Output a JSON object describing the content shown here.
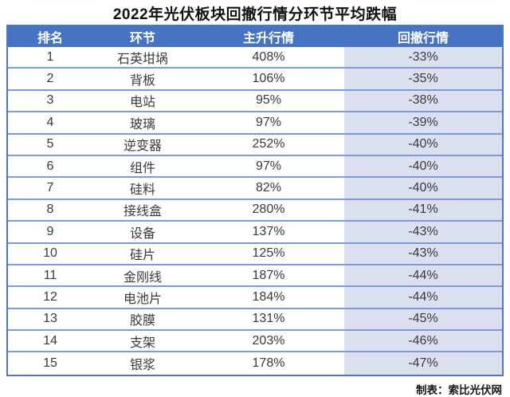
{
  "title": "2022年光伏板块回撤行情分环节平均跌幅",
  "source": "制表：索比光伏网",
  "colors": {
    "header_bg": "#4673c4",
    "header_text": "#ffffff",
    "drawdown_column_bg": "#dae0f0",
    "outer_border": "#4d78c0",
    "row_line": "#7b9ad8",
    "body_text": "#3a3a3a"
  },
  "columns": [
    "排名",
    "环节",
    "主升行情",
    "回撤行情"
  ],
  "rows": [
    {
      "rank": "1",
      "segment": "石英坩埚",
      "rise": "408%",
      "drawdown": "-33%"
    },
    {
      "rank": "2",
      "segment": "背板",
      "rise": "106%",
      "drawdown": "-35%"
    },
    {
      "rank": "3",
      "segment": "电站",
      "rise": "95%",
      "drawdown": "-38%"
    },
    {
      "rank": "4",
      "segment": "玻璃",
      "rise": "97%",
      "drawdown": "-39%"
    },
    {
      "rank": "5",
      "segment": "逆变器",
      "rise": "252%",
      "drawdown": "-40%"
    },
    {
      "rank": "6",
      "segment": "组件",
      "rise": "97%",
      "drawdown": "-40%"
    },
    {
      "rank": "7",
      "segment": "硅料",
      "rise": "82%",
      "drawdown": "-40%"
    },
    {
      "rank": "8",
      "segment": "接线盒",
      "rise": "280%",
      "drawdown": "-41%"
    },
    {
      "rank": "9",
      "segment": "设备",
      "rise": "137%",
      "drawdown": "-43%"
    },
    {
      "rank": "10",
      "segment": "硅片",
      "rise": "125%",
      "drawdown": "-43%"
    },
    {
      "rank": "11",
      "segment": "金刚线",
      "rise": "187%",
      "drawdown": "-44%"
    },
    {
      "rank": "12",
      "segment": "电池片",
      "rise": "184%",
      "drawdown": "-44%"
    },
    {
      "rank": "13",
      "segment": "胶膜",
      "rise": "131%",
      "drawdown": "-45%"
    },
    {
      "rank": "14",
      "segment": "支架",
      "rise": "203%",
      "drawdown": "-46%"
    },
    {
      "rank": "15",
      "segment": "银浆",
      "rise": "178%",
      "drawdown": "-47%"
    }
  ],
  "chart_data": {
    "type": "table",
    "title": "2022年光伏板块回撤行情分环节平均跌幅",
    "columns": [
      "排名",
      "环节",
      "主升行情",
      "回撤行情"
    ],
    "rows": [
      [
        "1",
        "石英坩埚",
        "408%",
        "-33%"
      ],
      [
        "2",
        "背板",
        "106%",
        "-35%"
      ],
      [
        "3",
        "电站",
        "95%",
        "-38%"
      ],
      [
        "4",
        "玻璃",
        "97%",
        "-39%"
      ],
      [
        "5",
        "逆变器",
        "252%",
        "-40%"
      ],
      [
        "6",
        "组件",
        "97%",
        "-40%"
      ],
      [
        "7",
        "硅料",
        "82%",
        "-40%"
      ],
      [
        "8",
        "接线盒",
        "280%",
        "-41%"
      ],
      [
        "9",
        "设备",
        "137%",
        "-43%"
      ],
      [
        "10",
        "硅片",
        "125%",
        "-43%"
      ],
      [
        "11",
        "金刚线",
        "187%",
        "-44%"
      ],
      [
        "12",
        "电池片",
        "184%",
        "-44%"
      ],
      [
        "13",
        "胶膜",
        "131%",
        "-45%"
      ],
      [
        "14",
        "支架",
        "203%",
        "-46%"
      ],
      [
        "15",
        "银浆",
        "178%",
        "-47%"
      ]
    ],
    "notes": "source: 制表：索比光伏网"
  }
}
